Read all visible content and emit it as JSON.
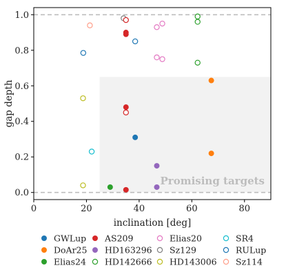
{
  "chart_data": {
    "type": "scatter",
    "xlabel": "inclination [deg]",
    "ylabel": "gap depth",
    "xlim": [
      0,
      90
    ],
    "ylim": [
      -0.04,
      1.04
    ],
    "xticks": [
      0,
      20,
      40,
      60,
      80
    ],
    "yticks": [
      0.0,
      0.2,
      0.4,
      0.6,
      0.8,
      1.0
    ],
    "grid": false,
    "reference_lines_y": [
      0.0,
      1.0
    ],
    "promising_region": {
      "x": [
        25,
        90
      ],
      "y": [
        0,
        0.65
      ]
    },
    "annotation": "Promising targets",
    "legend_position": "below-plot",
    "series": [
      {
        "name": "GWLup",
        "color": "#1f77b4",
        "filled": true,
        "points": [
          [
            38.5,
            0.31
          ]
        ]
      },
      {
        "name": "DoAr25",
        "color": "#ff7f0e",
        "filled": true,
        "points": [
          [
            67.4,
            0.63
          ],
          [
            67.4,
            0.22
          ]
        ]
      },
      {
        "name": "Elias24",
        "color": "#2ca02c",
        "filled": true,
        "points": [
          [
            29.0,
            0.03
          ]
        ]
      },
      {
        "name": "AS209",
        "color": "#d62728",
        "filled": true,
        "points": [
          [
            35.0,
            0.48
          ],
          [
            35.0,
            0.9
          ],
          [
            35.0,
            0.89
          ],
          [
            35.0,
            0.015
          ]
        ]
      },
      {
        "name": "HD163296",
        "color": "#9467bd",
        "filled": true,
        "points": [
          [
            46.7,
            0.15
          ],
          [
            46.7,
            0.03
          ]
        ]
      },
      {
        "name": "HD142666",
        "color": "#2ca02c",
        "filled": false,
        "points": [
          [
            62.2,
            0.99
          ],
          [
            62.2,
            0.96
          ],
          [
            62.2,
            0.73
          ]
        ]
      },
      {
        "name": "Elias20",
        "color": "#e377c2",
        "filled": false,
        "points": [
          [
            46.7,
            0.93
          ],
          [
            48.8,
            0.95
          ],
          [
            46.7,
            0.76
          ],
          [
            48.8,
            0.75
          ]
        ]
      },
      {
        "name": "Sz129",
        "color": "#7f7f7f",
        "filled": false,
        "points": [
          [
            34.1,
            0.98
          ]
        ]
      },
      {
        "name": "HD143006",
        "color": "#bcbd22",
        "filled": false,
        "points": [
          [
            18.7,
            0.53
          ],
          [
            18.7,
            0.04
          ]
        ]
      },
      {
        "name": "SR4",
        "color": "#17becf",
        "filled": false,
        "points": [
          [
            22.0,
            0.23
          ]
        ]
      },
      {
        "name": "RULup",
        "color": "#1f77b4",
        "filled": false,
        "points": [
          [
            18.8,
            0.785
          ],
          [
            38.5,
            0.85
          ]
        ]
      },
      {
        "name": "Sz114",
        "color": "#ff7f0e",
        "filled": false,
        "points": [
          [
            21.3,
            0.94
          ],
          [
            35.0,
            0.97
          ],
          [
            35.0,
            0.45
          ]
        ],
        "colors": [
          "#ff9f8a",
          "#d62728",
          "#d62728"
        ]
      }
    ]
  }
}
